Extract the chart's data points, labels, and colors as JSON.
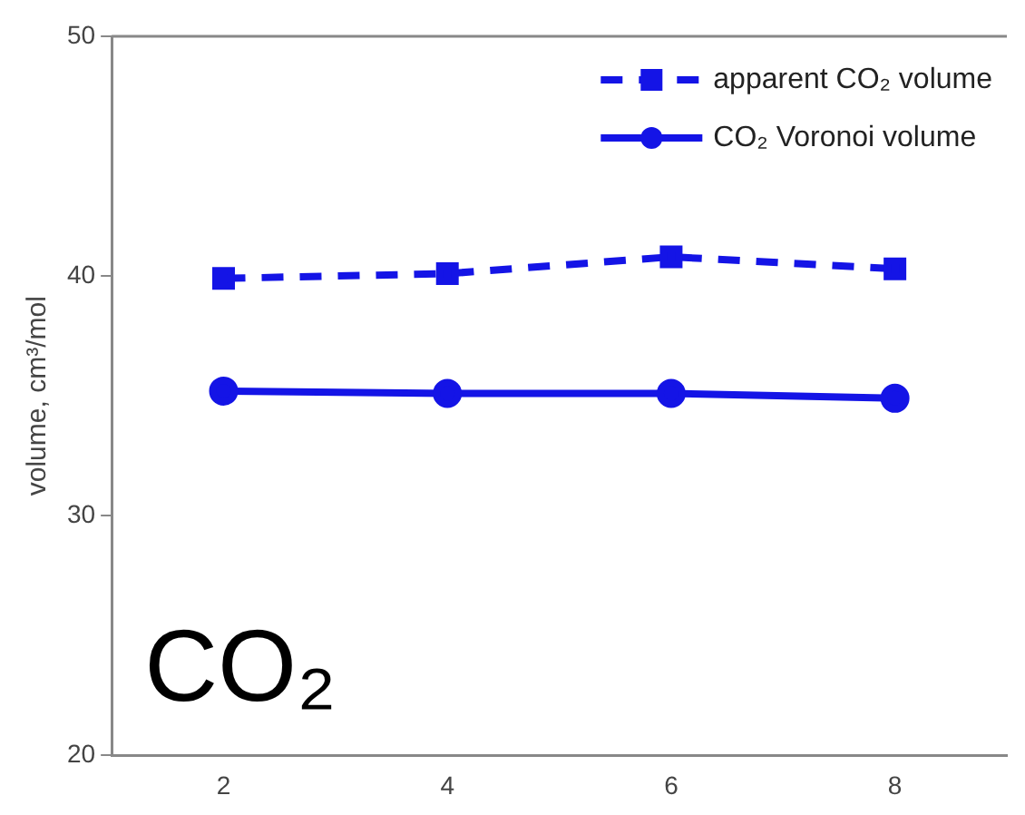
{
  "chart_data": {
    "type": "line",
    "ylabel": "volume, cm³/mol",
    "x": [
      2,
      4,
      6,
      8
    ],
    "series": [
      {
        "name": "apparent CO₂ volume",
        "color": "#1414e6",
        "values": [
          39.9,
          40.1,
          40.8,
          40.3
        ],
        "marker": "square",
        "line_style": "dashed"
      },
      {
        "name": "CO₂ Voronoi volume",
        "color": "#1414e6",
        "values": [
          35.2,
          35.1,
          35.1,
          34.9
        ],
        "marker": "circle",
        "line_style": "solid"
      }
    ],
    "xlim": [
      1,
      9
    ],
    "xticks": [
      2,
      4,
      6,
      8
    ],
    "ylim": [
      20,
      50
    ],
    "yticks": [
      20,
      30,
      40,
      50
    ],
    "grid": false,
    "legend": "top right",
    "annotations": [
      "CO₂"
    ]
  }
}
